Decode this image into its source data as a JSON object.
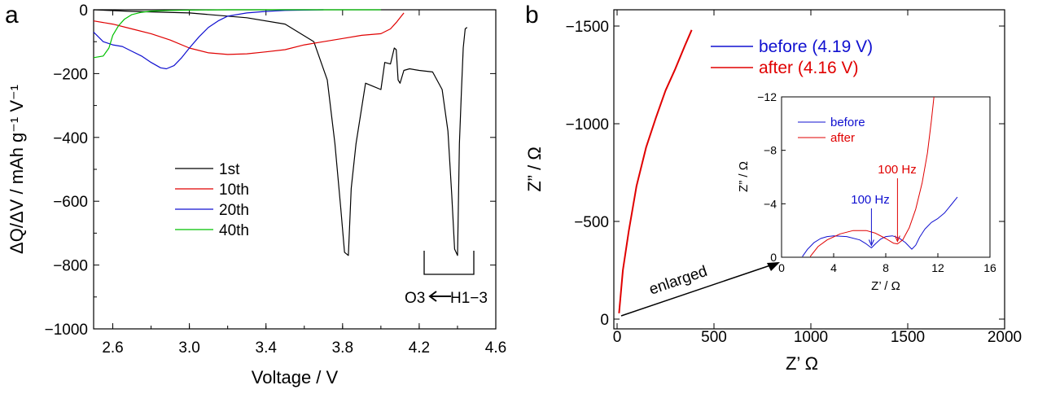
{
  "chart_data": [
    {
      "panel": "a",
      "type": "line",
      "xlabel": "Voltage  / V",
      "ylabel": "ΔQ/ΔV  / mAh g⁻¹ V⁻¹",
      "xlim": [
        2.5,
        4.6
      ],
      "ylim": [
        -1000,
        0
      ],
      "xticks": [
        2.6,
        3.0,
        3.4,
        3.8,
        4.2,
        4.6
      ],
      "xtick_labels": [
        "2.6",
        "3.0",
        "3.4",
        "3.8",
        "4.2",
        "4.6"
      ],
      "yticks": [
        0,
        -200,
        -400,
        -600,
        -800,
        -1000
      ],
      "ytick_labels": [
        "0",
        "−200",
        "−400",
        "−600",
        "−800",
        "−1000"
      ],
      "legend_position": "center",
      "series": [
        {
          "name": "1st",
          "color": "#000000",
          "x": [
            2.5,
            2.7,
            3.0,
            3.3,
            3.5,
            3.65,
            3.72,
            3.76,
            3.79,
            3.81,
            3.83,
            3.845,
            3.87,
            3.92,
            3.96,
            4.0,
            4.02,
            4.05,
            4.07,
            4.08,
            4.09,
            4.1,
            4.12,
            4.15,
            4.2,
            4.27,
            4.32,
            4.35,
            4.37,
            4.385,
            4.4,
            4.41,
            4.42,
            4.43,
            4.44,
            4.45
          ],
          "y": [
            0,
            -5,
            -10,
            -25,
            -45,
            -100,
            -220,
            -420,
            -620,
            -760,
            -770,
            -560,
            -420,
            -230,
            -240,
            -250,
            -165,
            -170,
            -120,
            -125,
            -220,
            -230,
            -190,
            -185,
            -190,
            -195,
            -250,
            -380,
            -580,
            -750,
            -770,
            -420,
            -260,
            -120,
            -60,
            -55
          ]
        },
        {
          "name": "10th",
          "color": "#e00000",
          "x": [
            2.5,
            2.6,
            2.7,
            2.8,
            2.9,
            3.0,
            3.1,
            3.2,
            3.3,
            3.4,
            3.5,
            3.6,
            3.7,
            3.8,
            3.9,
            4.0,
            4.05,
            4.08,
            4.1,
            4.12
          ],
          "y": [
            -35,
            -45,
            -60,
            -75,
            -95,
            -120,
            -135,
            -140,
            -138,
            -132,
            -125,
            -110,
            -100,
            -90,
            -80,
            -75,
            -60,
            -40,
            -25,
            -10
          ]
        },
        {
          "name": "20th",
          "color": "#1010d0",
          "x": [
            2.5,
            2.55,
            2.6,
            2.65,
            2.7,
            2.75,
            2.8,
            2.85,
            2.88,
            2.92,
            2.96,
            3.0,
            3.05,
            3.1,
            3.15,
            3.2,
            3.3,
            3.4,
            3.5,
            3.6,
            3.7
          ],
          "y": [
            -70,
            -100,
            -110,
            -115,
            -130,
            -145,
            -165,
            -182,
            -185,
            -175,
            -150,
            -120,
            -85,
            -55,
            -35,
            -20,
            -10,
            -5,
            -2,
            -1,
            0
          ]
        },
        {
          "name": "40th",
          "color": "#00c000",
          "x": [
            2.5,
            2.55,
            2.58,
            2.6,
            2.63,
            2.66,
            2.7,
            2.75,
            2.8,
            2.9,
            3.0,
            3.2,
            3.5,
            3.8,
            4.0
          ],
          "y": [
            -150,
            -145,
            -120,
            -80,
            -50,
            -30,
            -15,
            -8,
            -4,
            -2,
            -1,
            0,
            0,
            0,
            0
          ]
        }
      ],
      "annotation": {
        "left": "O3",
        "right": "H1−3"
      }
    },
    {
      "panel": "b",
      "type": "line",
      "xlabel": "Z’  Ω",
      "ylabel": "Z”  /  Ω",
      "xlim": [
        -20,
        2000
      ],
      "ylim": [
        0,
        -1600
      ],
      "xticks": [
        0,
        500,
        1000,
        1500,
        2000
      ],
      "xtick_labels": [
        "0",
        "500",
        "1000",
        "1500",
        "2000"
      ],
      "yticks": [
        0,
        -500,
        -1000,
        -1500
      ],
      "ytick_labels": [
        "0",
        "−500",
        "−1000",
        "−1500"
      ],
      "legend_position": "top-left",
      "series": [
        {
          "name": "before (4.19 V)",
          "color": "#1010d0",
          "x": [],
          "y": []
        },
        {
          "name": "after (4.16 V)",
          "color": "#e00000",
          "x": [
            10,
            30,
            60,
            100,
            150,
            200,
            250,
            300,
            350,
            385
          ],
          "y": [
            -30,
            -250,
            -450,
            -680,
            -880,
            -1030,
            -1170,
            -1280,
            -1400,
            -1480
          ]
        }
      ],
      "annotation_text": "enlarged",
      "inset": {
        "xlabel": "Z’  /  Ω",
        "ylabel": "Z”  /  Ω",
        "xlim": [
          0,
          16
        ],
        "ylim": [
          0,
          -12
        ],
        "xticks": [
          0,
          4,
          8,
          12,
          16
        ],
        "xtick_labels": [
          "0",
          "4",
          "8",
          "12",
          "16"
        ],
        "yticks": [
          0,
          -4,
          -8,
          -12
        ],
        "ytick_labels": [
          "0",
          "−4",
          "−8",
          "−12"
        ],
        "legend_position": "top-left",
        "series": [
          {
            "name": "before",
            "color": "#1010d0",
            "x": [
              1.6,
              2.0,
              2.5,
              3.0,
              3.5,
              4.0,
              5.0,
              6.0,
              6.5,
              6.9,
              7.2,
              7.6,
              8.0,
              8.5,
              9.0,
              9.5,
              10.0,
              10.3,
              10.6,
              11.0,
              11.5,
              12.0,
              12.5,
              13.0,
              13.5
            ],
            "y": [
              -0.05,
              -0.6,
              -1.1,
              -1.4,
              -1.55,
              -1.6,
              -1.55,
              -1.3,
              -1.0,
              -0.7,
              -1.0,
              -1.35,
              -1.55,
              -1.6,
              -1.45,
              -1.1,
              -0.6,
              -0.9,
              -1.5,
              -2.1,
              -2.6,
              -2.9,
              -3.3,
              -3.9,
              -4.5
            ]
          },
          {
            "name": "after",
            "color": "#e00000",
            "x": [
              2.2,
              2.8,
              3.5,
              4.5,
              5.5,
              6.5,
              7.2,
              8.0,
              8.6,
              8.9,
              9.3,
              9.8,
              10.3,
              10.8,
              11.2,
              11.5,
              11.7
            ],
            "y": [
              -0.05,
              -0.8,
              -1.3,
              -1.75,
              -2.0,
              -2.0,
              -1.8,
              -1.4,
              -1.05,
              -1.0,
              -1.3,
              -2.2,
              -3.6,
              -5.6,
              -7.8,
              -10.2,
              -12.0
            ]
          }
        ],
        "markers": [
          {
            "label": "100 Hz",
            "color": "#1010d0",
            "x": 6.9,
            "y": -0.7
          },
          {
            "label": "100 Hz",
            "color": "#e00000",
            "x": 8.9,
            "y": -1.0
          }
        ]
      }
    }
  ]
}
